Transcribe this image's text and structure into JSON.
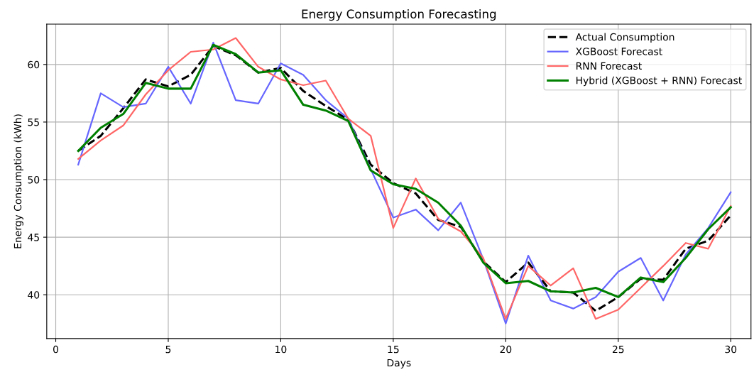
{
  "chart_data": {
    "type": "line",
    "title": "Energy Consumption Forecasting",
    "xlabel": "Days",
    "ylabel": "Energy Consumption (kWh)",
    "x": [
      1,
      2,
      3,
      4,
      5,
      6,
      7,
      8,
      9,
      10,
      11,
      12,
      13,
      14,
      15,
      16,
      17,
      18,
      19,
      20,
      21,
      22,
      23,
      24,
      25,
      26,
      27,
      28,
      29,
      30
    ],
    "series": [
      {
        "name": "Actual Consumption",
        "color": "#000000",
        "line_style": "dashed",
        "values": [
          52.5,
          53.8,
          56.2,
          58.7,
          58.1,
          59.1,
          61.6,
          60.8,
          59.3,
          59.7,
          57.7,
          56.4,
          55.2,
          51.3,
          49.7,
          48.8,
          46.5,
          45.9,
          42.9,
          41.1,
          42.8,
          40.3,
          40.2,
          38.6,
          39.8,
          41.4,
          41.3,
          44.0,
          44.7,
          46.9
        ]
      },
      {
        "name": "XGBoost Forecast",
        "color": "#6666ff",
        "line_style": "solid",
        "values": [
          51.3,
          57.5,
          56.3,
          56.6,
          59.8,
          56.6,
          61.9,
          56.9,
          56.6,
          60.1,
          59.1,
          56.9,
          55.3,
          50.9,
          46.7,
          47.4,
          45.6,
          48.0,
          43.1,
          37.5,
          43.4,
          39.5,
          38.8,
          39.8,
          42.0,
          43.2,
          39.5,
          43.5,
          45.8,
          48.9
        ]
      },
      {
        "name": "RNN Forecast",
        "color": "#ff6666",
        "line_style": "solid",
        "values": [
          51.8,
          53.4,
          54.7,
          57.4,
          59.5,
          61.1,
          61.3,
          62.3,
          59.8,
          58.7,
          58.2,
          58.6,
          55.3,
          53.8,
          45.8,
          50.1,
          46.6,
          45.5,
          43.2,
          37.9,
          42.5,
          40.8,
          42.3,
          37.9,
          38.7,
          40.6,
          42.5,
          44.5,
          44.0,
          47.7
        ]
      },
      {
        "name": "Hybrid (XGBoost + RNN) Forecast",
        "color": "#008000",
        "line_style": "solid",
        "values": [
          52.5,
          54.5,
          55.7,
          58.4,
          57.9,
          57.9,
          61.7,
          60.9,
          59.3,
          59.5,
          56.5,
          56.0,
          55.1,
          50.8,
          49.6,
          49.2,
          48.0,
          46.0,
          42.8,
          41.0,
          41.2,
          40.3,
          40.2,
          40.6,
          39.8,
          41.5,
          41.1,
          43.2,
          45.7,
          47.6
        ]
      }
    ],
    "xlim": [
      -0.4,
      30.9
    ],
    "xticks": [
      0,
      5,
      10,
      15,
      20,
      25,
      30
    ],
    "ylim": [
      36.2,
      63.5
    ],
    "yticks": [
      40,
      45,
      50,
      55,
      60
    ],
    "grid": true,
    "legend": "top right",
    "marker": "none"
  }
}
